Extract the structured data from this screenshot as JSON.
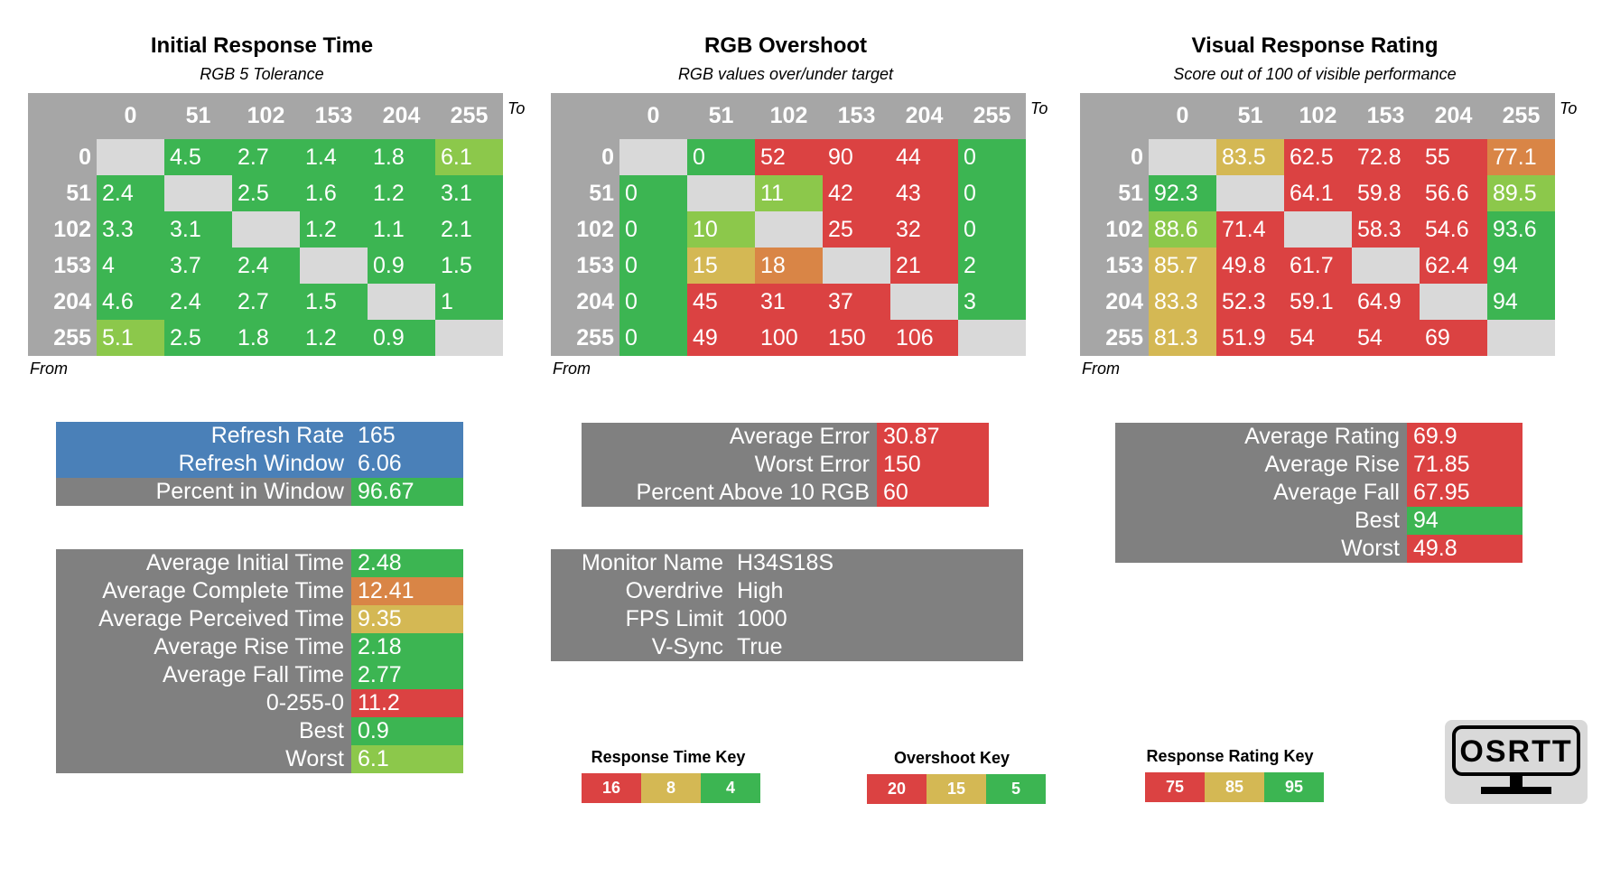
{
  "colors": {
    "green": "#3cb552",
    "lightgreen": "#8cc84b",
    "yellow": "#d4b854",
    "orange": "#d98546",
    "red": "#db4242",
    "gray": "#808080",
    "diag": "#d9d9d9",
    "blue": "#4a80b8"
  },
  "chart_data": [
    {
      "type": "heatmap",
      "title": "Initial Response Time",
      "subtitle": "RGB 5 Tolerance",
      "xlabel": "To",
      "ylabel": "From",
      "x": [
        "0",
        "51",
        "102",
        "153",
        "204",
        "255"
      ],
      "y": [
        "0",
        "51",
        "102",
        "153",
        "204",
        "255"
      ],
      "values": [
        [
          null,
          "4.5",
          "2.7",
          "1.4",
          "1.8",
          "6.1"
        ],
        [
          "2.4",
          null,
          "2.5",
          "1.6",
          "1.2",
          "3.1"
        ],
        [
          "3.3",
          "3.1",
          null,
          "1.2",
          "1.1",
          "2.1"
        ],
        [
          "4",
          "3.7",
          "2.4",
          null,
          "0.9",
          "1.5"
        ],
        [
          "4.6",
          "2.4",
          "2.7",
          "1.5",
          null,
          "1"
        ],
        [
          "5.1",
          "2.5",
          "1.8",
          "1.2",
          "0.9",
          null
        ]
      ],
      "cell_colors": [
        [
          "diag",
          "green",
          "green",
          "green",
          "green",
          "lightgreen"
        ],
        [
          "green",
          "diag",
          "green",
          "green",
          "green",
          "green"
        ],
        [
          "green",
          "green",
          "diag",
          "green",
          "green",
          "green"
        ],
        [
          "green",
          "green",
          "green",
          "diag",
          "green",
          "green"
        ],
        [
          "green",
          "green",
          "green",
          "green",
          "diag",
          "green"
        ],
        [
          "lightgreen",
          "green",
          "green",
          "green",
          "green",
          "diag"
        ]
      ]
    },
    {
      "type": "heatmap",
      "title": "RGB Overshoot",
      "subtitle": "RGB values over/under target",
      "xlabel": "To",
      "ylabel": "From",
      "x": [
        "0",
        "51",
        "102",
        "153",
        "204",
        "255"
      ],
      "y": [
        "0",
        "51",
        "102",
        "153",
        "204",
        "255"
      ],
      "values": [
        [
          null,
          "0",
          "52",
          "90",
          "44",
          "0"
        ],
        [
          "0",
          null,
          "11",
          "42",
          "43",
          "0"
        ],
        [
          "0",
          "10",
          null,
          "25",
          "32",
          "0"
        ],
        [
          "0",
          "15",
          "18",
          null,
          "21",
          "2"
        ],
        [
          "0",
          "45",
          "31",
          "37",
          null,
          "3"
        ],
        [
          "0",
          "49",
          "100",
          "150",
          "106",
          null
        ]
      ],
      "cell_colors": [
        [
          "diag",
          "green",
          "red",
          "red",
          "red",
          "green"
        ],
        [
          "green",
          "diag",
          "lightgreen",
          "red",
          "red",
          "green"
        ],
        [
          "green",
          "lightgreen",
          "diag",
          "red",
          "red",
          "green"
        ],
        [
          "green",
          "yellow",
          "orange",
          "diag",
          "red",
          "green"
        ],
        [
          "green",
          "red",
          "red",
          "red",
          "diag",
          "green"
        ],
        [
          "green",
          "red",
          "red",
          "red",
          "red",
          "diag"
        ]
      ]
    },
    {
      "type": "heatmap",
      "title": "Visual Response Rating",
      "subtitle": "Score out of 100 of visible performance",
      "xlabel": "To",
      "ylabel": "From",
      "x": [
        "0",
        "51",
        "102",
        "153",
        "204",
        "255"
      ],
      "y": [
        "0",
        "51",
        "102",
        "153",
        "204",
        "255"
      ],
      "values": [
        [
          null,
          "83.5",
          "62.5",
          "72.8",
          "55",
          "77.1"
        ],
        [
          "92.3",
          null,
          "64.1",
          "59.8",
          "56.6",
          "89.5"
        ],
        [
          "88.6",
          "71.4",
          null,
          "58.3",
          "54.6",
          "93.6"
        ],
        [
          "85.7",
          "49.8",
          "61.7",
          null,
          "62.4",
          "94"
        ],
        [
          "83.3",
          "52.3",
          "59.1",
          "64.9",
          null,
          "94"
        ],
        [
          "81.3",
          "51.9",
          "54",
          "54",
          "69",
          null
        ]
      ],
      "cell_colors": [
        [
          "diag",
          "yellow",
          "red",
          "red",
          "red",
          "orange"
        ],
        [
          "green",
          "diag",
          "red",
          "red",
          "red",
          "lightgreen"
        ],
        [
          "lightgreen",
          "red",
          "diag",
          "red",
          "red",
          "green"
        ],
        [
          "yellow",
          "red",
          "red",
          "diag",
          "red",
          "green"
        ],
        [
          "yellow",
          "red",
          "red",
          "red",
          "diag",
          "green"
        ],
        [
          "yellow",
          "red",
          "red",
          "red",
          "red",
          "diag"
        ]
      ]
    }
  ],
  "refresh_panel": [
    {
      "label": "Refresh Rate",
      "value": "165",
      "label_color": "blue",
      "value_color": "blue"
    },
    {
      "label": "Refresh Window",
      "value": "6.06",
      "label_color": "blue",
      "value_color": "blue"
    },
    {
      "label": "Percent in Window",
      "value": "96.67",
      "label_color": "gray",
      "value_color": "green"
    }
  ],
  "times_panel": [
    {
      "label": "Average Initial Time",
      "value": "2.48",
      "value_color": "green"
    },
    {
      "label": "Average Complete Time",
      "value": "12.41",
      "value_color": "orange"
    },
    {
      "label": "Average Perceived Time",
      "value": "9.35",
      "value_color": "yellow"
    },
    {
      "label": "Average Rise Time",
      "value": "2.18",
      "value_color": "green"
    },
    {
      "label": "Average Fall Time",
      "value": "2.77",
      "value_color": "green"
    },
    {
      "label": "0-255-0",
      "value": "11.2",
      "value_color": "red"
    },
    {
      "label": "Best",
      "value": "0.9",
      "value_color": "green"
    },
    {
      "label": "Worst",
      "value": "6.1",
      "value_color": "lightgreen"
    }
  ],
  "error_panel": [
    {
      "label": "Average Error",
      "value": "30.87",
      "value_color": "red"
    },
    {
      "label": "Worst Error",
      "value": "150",
      "value_color": "red"
    },
    {
      "label": "Percent Above 10 RGB",
      "value": "60",
      "value_color": "red"
    }
  ],
  "monitor_panel": [
    {
      "label": "Monitor Name",
      "value": "H34S18S"
    },
    {
      "label": "Overdrive",
      "value": "High"
    },
    {
      "label": "FPS Limit",
      "value": "1000"
    },
    {
      "label": "V-Sync",
      "value": "True"
    }
  ],
  "rating_panel": [
    {
      "label": "Average Rating",
      "value": "69.9",
      "value_color": "red"
    },
    {
      "label": "Average Rise",
      "value": "71.85",
      "value_color": "red"
    },
    {
      "label": "Average Fall",
      "value": "67.95",
      "value_color": "red"
    },
    {
      "label": "Best",
      "value": "94",
      "value_color": "green"
    },
    {
      "label": "Worst",
      "value": "49.8",
      "value_color": "red"
    }
  ],
  "keys": [
    {
      "title": "Response Time Key",
      "values": [
        "16",
        "8",
        "4"
      ]
    },
    {
      "title": "Overshoot Key",
      "values": [
        "20",
        "15",
        "5"
      ]
    },
    {
      "title": "Response Rating Key",
      "values": [
        "75",
        "85",
        "95"
      ]
    }
  ],
  "logo": {
    "text": "OSRTT",
    "icon": "monitor-icon"
  }
}
